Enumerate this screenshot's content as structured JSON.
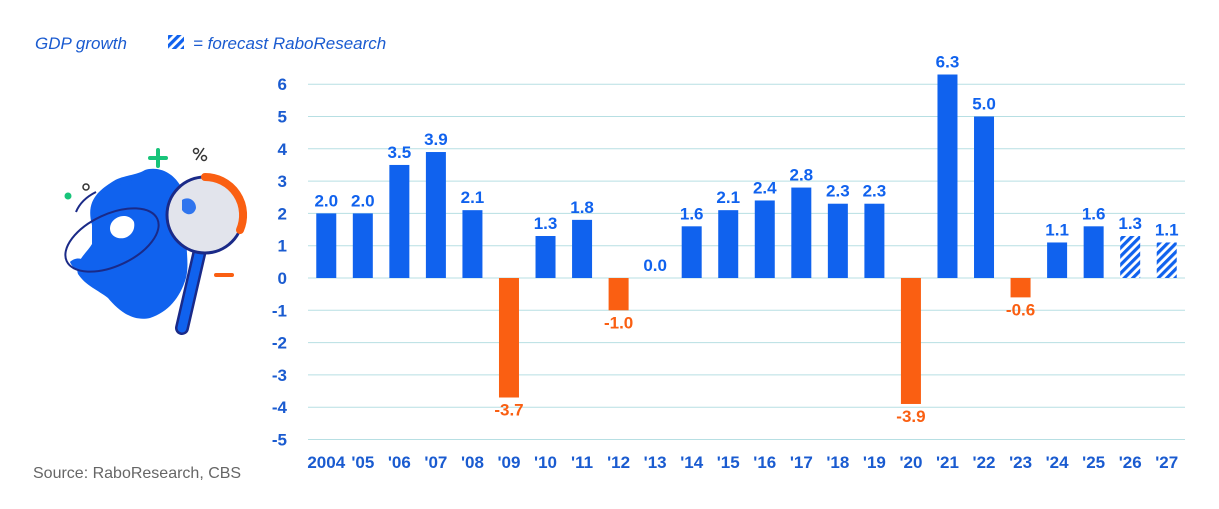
{
  "legend": {
    "label": "GDP growth",
    "forecast_text": "= forecast RaboResearch"
  },
  "source": "Source: RaboResearch, CBS",
  "colors": {
    "positive": "#1062ee",
    "negative": "#fa5f12",
    "axis_text": "#1a5bd0",
    "grid": "#b7dfe3"
  },
  "illustration": {
    "icon": "netherlands-map-magnifying-glass-icon"
  },
  "chart_data": {
    "type": "bar",
    "title": "",
    "categories": [
      "2004",
      "'05",
      "'06",
      "'07",
      "'08",
      "'09",
      "'10",
      "'11",
      "'12",
      "'13",
      "'14",
      "'15",
      "'16",
      "'17",
      "'18",
      "'19",
      "'20",
      "'21",
      "'22",
      "'23",
      "'24",
      "'25",
      "'26",
      "'27"
    ],
    "values": [
      2.0,
      2.0,
      3.5,
      3.9,
      2.1,
      -3.7,
      1.3,
      1.8,
      -1.0,
      0.0,
      1.6,
      2.1,
      2.4,
      2.8,
      2.3,
      2.3,
      -3.9,
      6.3,
      5.0,
      -0.6,
      1.1,
      1.6,
      1.3,
      1.1
    ],
    "value_labels": [
      "2.0",
      "2.0",
      "3.5",
      "3.9",
      "2.1",
      "-3.7",
      "1.3",
      "1.8",
      "-1.0",
      "0.0",
      "1.6",
      "2.1",
      "2.4",
      "2.8",
      "2.3",
      "2.3",
      "-3.9",
      "6.3",
      "5.0",
      "-0.6",
      "1.1",
      "1.6",
      "1.3",
      "1.1"
    ],
    "forecast": [
      false,
      false,
      false,
      false,
      false,
      false,
      false,
      false,
      false,
      false,
      false,
      false,
      false,
      false,
      false,
      false,
      false,
      false,
      false,
      false,
      false,
      false,
      true,
      true
    ],
    "yticks": [
      6,
      5,
      4,
      3,
      2,
      1,
      0,
      -1,
      -2,
      -3,
      -4,
      -5
    ],
    "ylim": [
      -5,
      6
    ],
    "grid": true,
    "xlabel": "",
    "ylabel": ""
  }
}
